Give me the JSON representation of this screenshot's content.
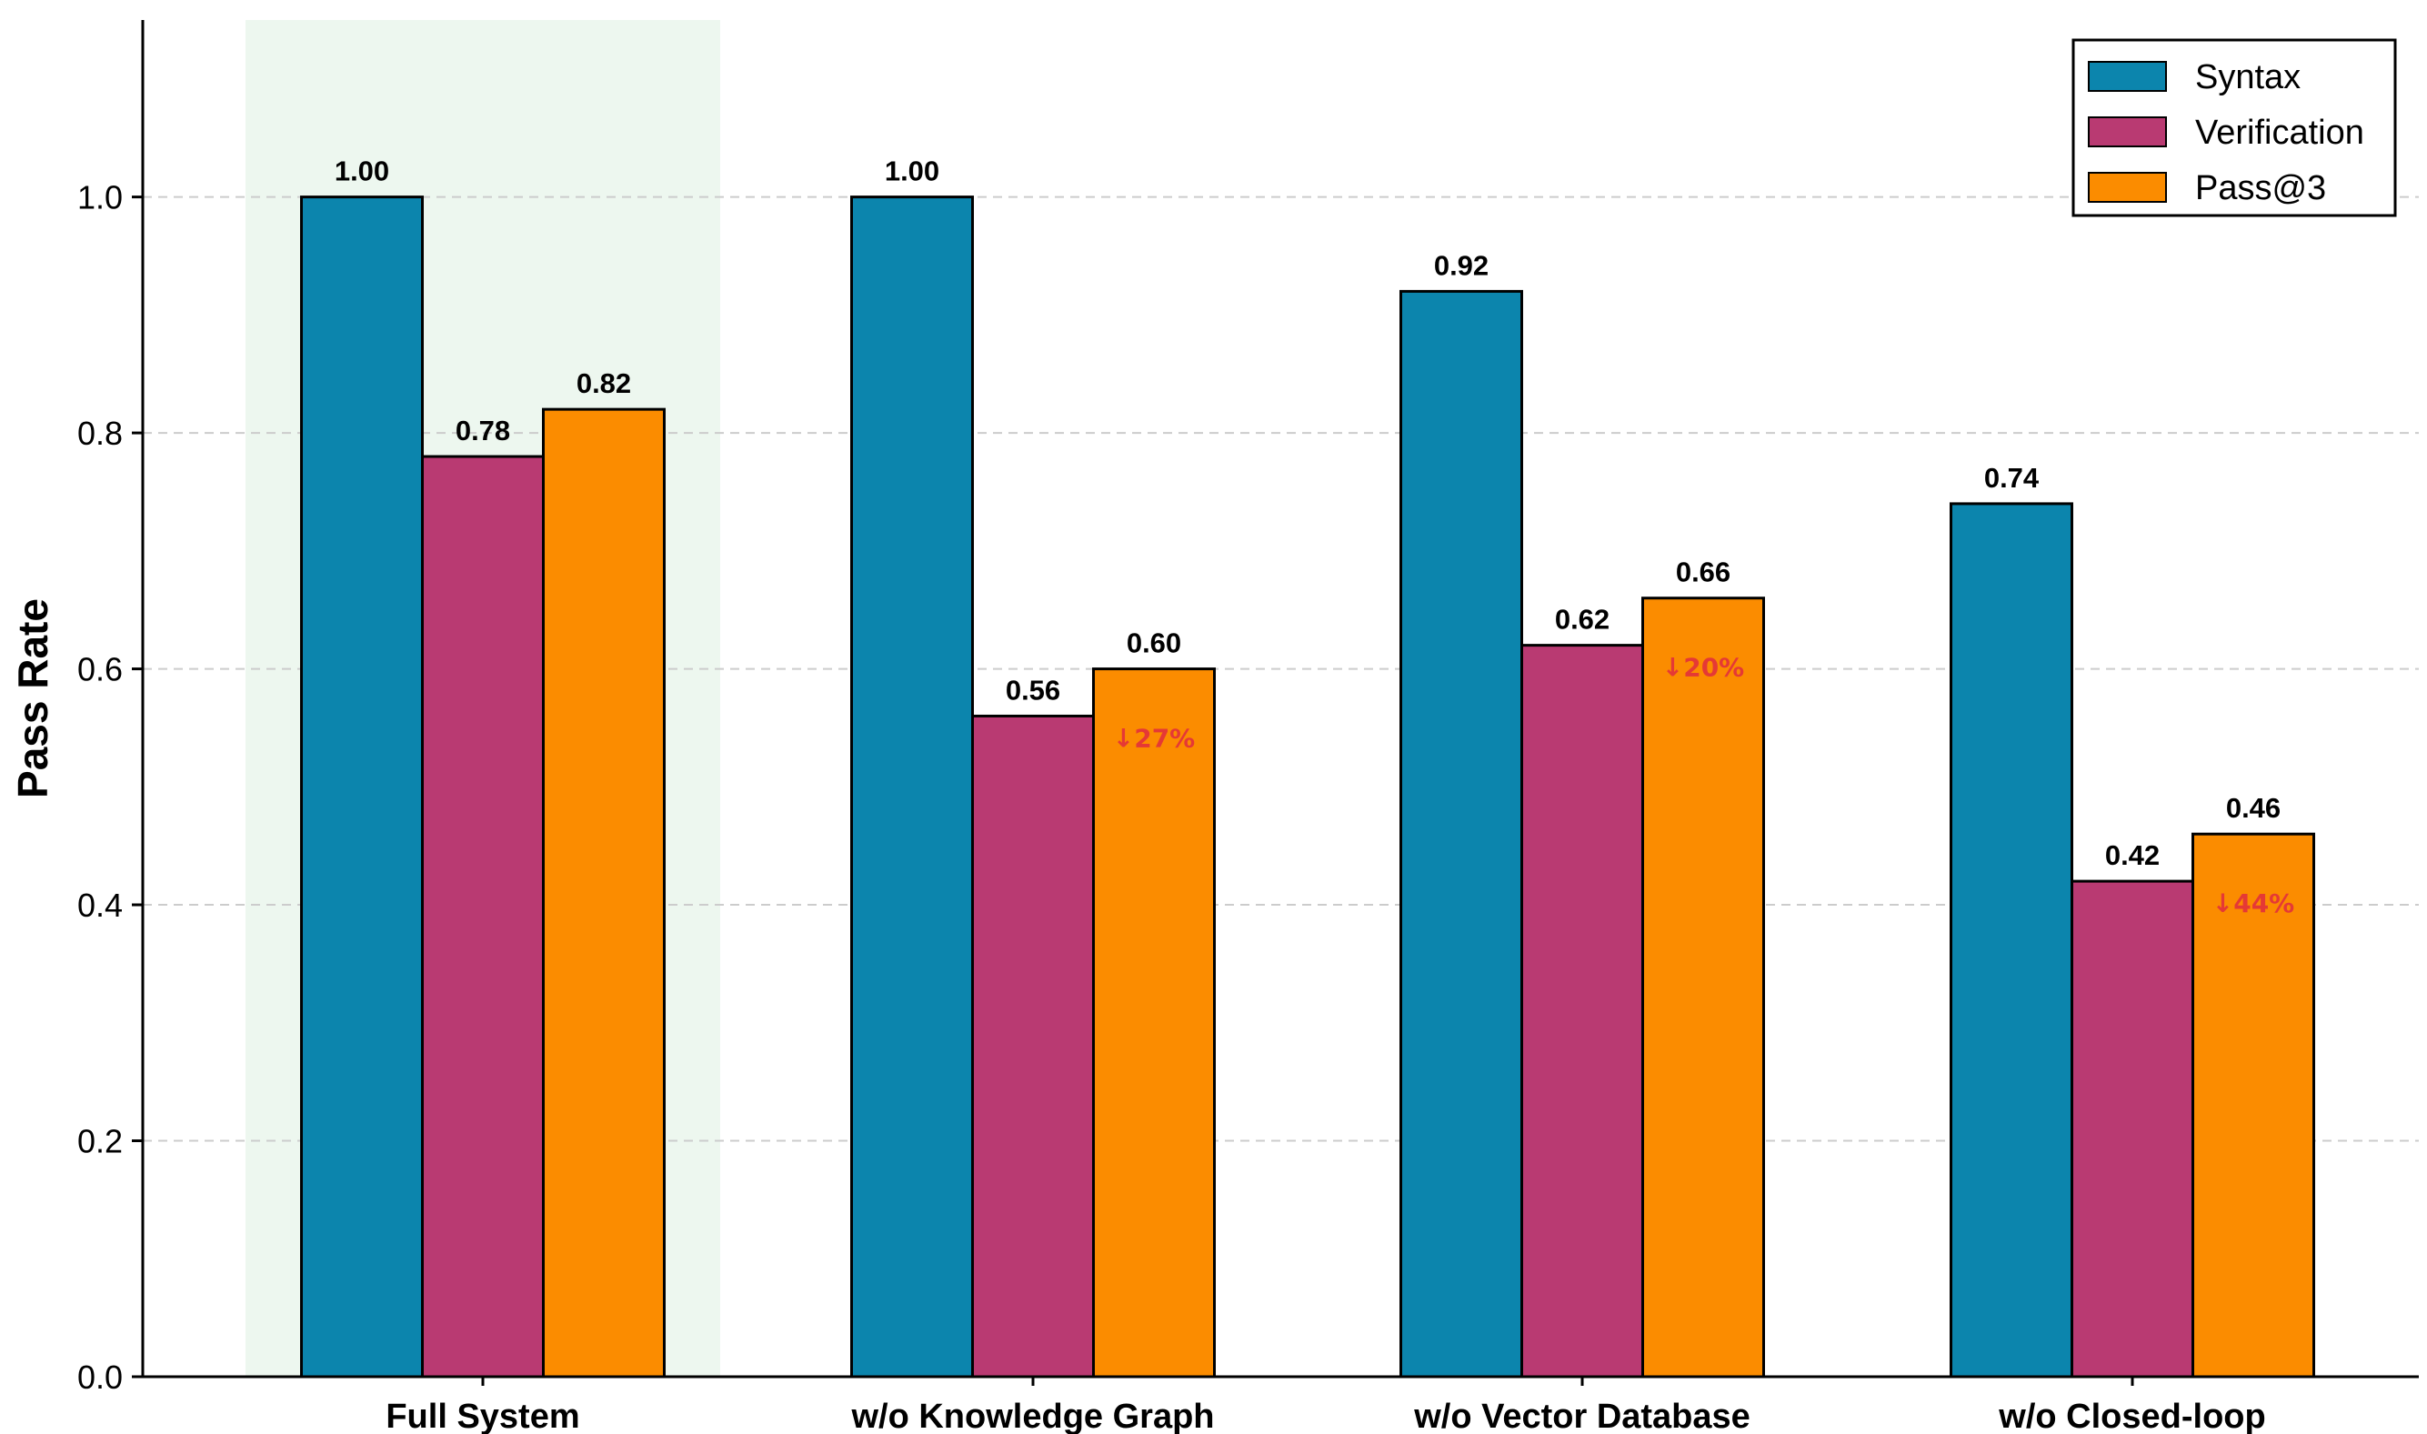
{
  "chart_data": {
    "type": "bar",
    "title": "",
    "xlabel": "",
    "ylabel": "Pass Rate",
    "ylim": [
      0,
      1.15
    ],
    "yticks": [
      0.0,
      0.2,
      0.4,
      0.6,
      0.8,
      1.0
    ],
    "grid": "horizontal dashed",
    "legend_position": "top-right",
    "categories": [
      "Full System",
      "w/o Knowledge Graph",
      "w/o Vector Database",
      "w/o Closed-loop"
    ],
    "highlighted_category": "Full System",
    "series": [
      {
        "name": "Syntax",
        "color": "#0c85ad",
        "values": [
          1.0,
          1.0,
          0.92,
          0.74
        ],
        "labels": [
          "1.00",
          "1.00",
          "0.92",
          "0.74"
        ]
      },
      {
        "name": "Verification",
        "color": "#b93a72",
        "values": [
          0.78,
          0.56,
          0.62,
          0.42
        ],
        "labels": [
          "0.78",
          "0.56",
          "0.62",
          "0.42"
        ]
      },
      {
        "name": "Pass@3",
        "color": "#fb8c00",
        "values": [
          0.82,
          0.6,
          0.66,
          0.46
        ],
        "labels": [
          "0.82",
          "0.60",
          "0.66",
          "0.46"
        ]
      }
    ],
    "annotations": [
      {
        "category": "w/o Knowledge Graph",
        "series": "Pass@3",
        "text": "↓27%"
      },
      {
        "category": "w/o Vector Database",
        "series": "Pass@3",
        "text": "↓20%"
      },
      {
        "category": "w/o Closed-loop",
        "series": "Pass@3",
        "text": "↓44%"
      }
    ],
    "colors": {
      "highlight": "#edf7ef",
      "grid": "#cccccc",
      "annotation": "#e53935",
      "axis": "#000000"
    }
  }
}
